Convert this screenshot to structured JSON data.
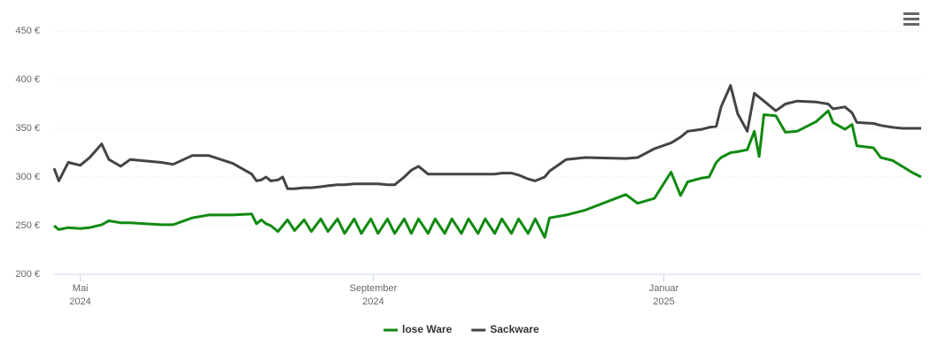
{
  "chart_data": {
    "type": "line",
    "x": [
      "2024-04-20",
      "2024-04-22",
      "2024-04-26",
      "2024-05-01",
      "2024-05-05",
      "2024-05-10",
      "2024-05-13",
      "2024-05-18",
      "2024-05-22",
      "2024-06-04",
      "2024-06-09",
      "2024-06-17",
      "2024-06-24",
      "2024-07-04",
      "2024-07-12",
      "2024-07-14",
      "2024-07-16",
      "2024-07-18",
      "2024-07-20",
      "2024-07-23",
      "2024-07-25",
      "2024-07-27",
      "2024-07-30",
      "2024-08-03",
      "2024-08-06",
      "2024-08-10",
      "2024-08-13",
      "2024-08-17",
      "2024-08-20",
      "2024-08-24",
      "2024-08-27",
      "2024-08-31",
      "2024-09-03",
      "2024-09-07",
      "2024-09-10",
      "2024-09-14",
      "2024-09-17",
      "2024-09-20",
      "2024-09-24",
      "2024-09-27",
      "2024-10-01",
      "2024-10-04",
      "2024-10-08",
      "2024-10-11",
      "2024-10-15",
      "2024-10-18",
      "2024-10-22",
      "2024-10-25",
      "2024-10-29",
      "2024-11-01",
      "2024-11-05",
      "2024-11-08",
      "2024-11-12",
      "2024-11-14",
      "2024-11-21",
      "2024-11-29",
      "2024-12-16",
      "2024-12-21",
      "2024-12-28",
      "2025-01-04",
      "2025-01-08",
      "2025-01-11",
      "2025-01-17",
      "2025-01-20",
      "2025-01-23",
      "2025-01-25",
      "2025-01-29",
      "2025-02-01",
      "2025-02-05",
      "2025-02-08",
      "2025-02-10",
      "2025-02-12",
      "2025-02-17",
      "2025-02-21",
      "2025-02-26",
      "2025-03-06",
      "2025-03-11",
      "2025-03-13",
      "2025-03-18",
      "2025-03-21",
      "2025-03-23",
      "2025-03-30",
      "2025-04-02",
      "2025-04-07",
      "2025-04-11",
      "2025-04-15",
      "2025-04-19"
    ],
    "series": [
      {
        "name": "lose Ware",
        "color": "#108a10",
        "values": [
          250,
          246,
          248,
          247,
          248,
          251,
          255,
          253,
          253,
          251,
          251,
          258,
          261,
          261,
          262,
          252,
          256,
          252,
          250,
          244,
          250,
          256,
          245,
          256,
          244,
          257,
          244,
          257,
          242,
          257,
          242,
          257,
          242,
          257,
          242,
          257,
          242,
          257,
          242,
          257,
          242,
          257,
          242,
          257,
          242,
          257,
          242,
          257,
          242,
          257,
          242,
          257,
          238,
          258,
          261,
          266,
          282,
          273,
          278,
          305,
          281,
          295,
          299,
          300,
          315,
          320,
          325,
          326,
          328,
          347,
          321,
          364,
          363,
          346,
          347,
          357,
          368,
          356,
          349,
          354,
          332,
          330,
          320,
          317,
          311,
          305,
          300
        ]
      },
      {
        "name": "Sackware",
        "color": "#434348",
        "values": [
          309,
          296,
          315,
          312,
          320,
          334,
          318,
          311,
          318,
          315,
          313,
          322,
          322,
          314,
          303,
          296,
          297,
          300,
          296,
          297,
          300,
          288,
          288,
          289,
          289,
          290,
          291,
          292,
          292,
          293,
          293,
          293,
          293,
          292,
          292,
          300,
          307,
          311,
          303,
          303,
          303,
          303,
          303,
          303,
          303,
          303,
          303,
          304,
          304,
          302,
          298,
          296,
          300,
          306,
          318,
          320,
          319,
          320,
          329,
          335,
          341,
          347,
          349,
          351,
          352,
          372,
          394,
          365,
          347,
          386,
          382,
          378,
          368,
          375,
          378,
          377,
          375,
          370,
          372,
          366,
          356,
          355,
          353,
          351,
          350,
          350,
          350
        ]
      }
    ],
    "xlim": [
      "2024-04-20",
      "2025-04-19"
    ],
    "xticks": [
      {
        "value": "2024-05-01",
        "label": [
          "Mai",
          "2024"
        ]
      },
      {
        "value": "2024-09-01",
        "label": [
          "September",
          "2024"
        ]
      },
      {
        "value": "2025-01-01",
        "label": [
          "Januar",
          "2025"
        ]
      }
    ],
    "ylim": [
      200,
      450
    ],
    "yticks": [
      {
        "value": 200,
        "label": "200 €"
      },
      {
        "value": 250,
        "label": "250 €"
      },
      {
        "value": 300,
        "label": "300 €"
      },
      {
        "value": 350,
        "label": "350 €"
      },
      {
        "value": 400,
        "label": "400 €"
      },
      {
        "value": 450,
        "label": "450 €"
      }
    ],
    "grid": true,
    "legend": "bottom"
  }
}
